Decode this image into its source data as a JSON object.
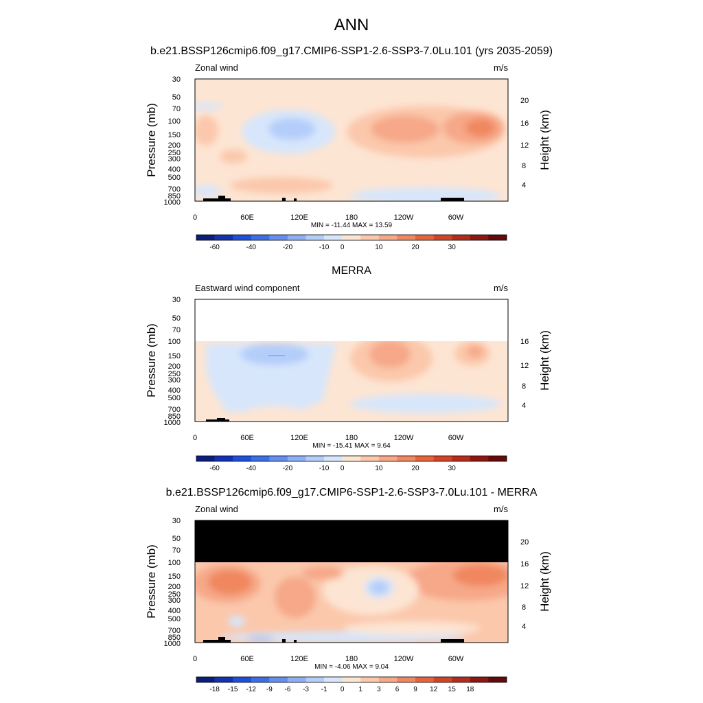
{
  "main_title": "ANN",
  "chart_data": [
    {
      "type": "heatmap",
      "title": "b.e21.BSSP126cmip6.f09_g17.CMIP6-SSP1-2.6-SSP3-7.0Lu.101 (yrs 2035-2059)",
      "field_label": "Zonal wind",
      "units": "m/s",
      "ylabel": "Pressure (mb)",
      "ylabel_right": "Height (km)",
      "x_ticks": [
        "0",
        "60E",
        "120E",
        "180",
        "120W",
        "60W"
      ],
      "y_ticks": [
        "30",
        "50",
        "70",
        "100",
        "150",
        "200",
        "250",
        "300",
        "400",
        "500",
        "700",
        "850",
        "1000"
      ],
      "height_ticks": [
        "20",
        "16",
        "12",
        "8",
        "4"
      ],
      "minmax": "MIN = -11.44  MAX =  13.59",
      "min": -11.44,
      "max": 13.59,
      "levels": [
        "-60",
        "-40",
        "-20",
        "-10",
        "0",
        "10",
        "20",
        "30"
      ],
      "colors": [
        "#0a1e7a",
        "#1232b0",
        "#1e50dc",
        "#3c6ee6",
        "#648ff0",
        "#8caff5",
        "#b4cdfa",
        "#d7e6fb",
        "#fde5d3",
        "#fbc8ac",
        "#f6a888",
        "#f0875f",
        "#e6643c",
        "#d24428",
        "#b42d1c",
        "#8c1810",
        "#640a0a"
      ],
      "plot_top": 30
    },
    {
      "type": "heatmap",
      "title": "MERRA",
      "field_label": "Eastward wind component",
      "units": "m/s",
      "ylabel": "Pressure (mb)",
      "ylabel_right": "Height (km)",
      "x_ticks": [
        "0",
        "60E",
        "120E",
        "180",
        "120W",
        "60W"
      ],
      "y_ticks": [
        "30",
        "50",
        "70",
        "100",
        "150",
        "200",
        "250",
        "300",
        "400",
        "500",
        "700",
        "850",
        "1000"
      ],
      "height_ticks": [
        "16",
        "12",
        "8",
        "4"
      ],
      "minmax": "MIN = -15.41  MAX =   9.64",
      "min": -15.41,
      "max": 9.64,
      "levels": [
        "-60",
        "-40",
        "-20",
        "-10",
        "0",
        "10",
        "20",
        "30"
      ],
      "colors": [
        "#0a1e7a",
        "#1232b0",
        "#1e50dc",
        "#3c6ee6",
        "#648ff0",
        "#8caff5",
        "#b4cdfa",
        "#d7e6fb",
        "#fde5d3",
        "#fbc8ac",
        "#f6a888",
        "#f0875f",
        "#e6643c",
        "#d24428",
        "#b42d1c",
        "#8c1810",
        "#640a0a"
      ],
      "plot_top": 100
    },
    {
      "type": "heatmap",
      "title": "b.e21.BSSP126cmip6.f09_g17.CMIP6-SSP1-2.6-SSP3-7.0Lu.101 - MERRA",
      "field_label": "Zonal wind",
      "units": "m/s",
      "ylabel": "Pressure (mb)",
      "ylabel_right": "Height (km)",
      "x_ticks": [
        "0",
        "60E",
        "120E",
        "180",
        "120W",
        "60W"
      ],
      "y_ticks": [
        "30",
        "50",
        "70",
        "100",
        "150",
        "200",
        "250",
        "300",
        "400",
        "500",
        "700",
        "850",
        "1000"
      ],
      "height_ticks": [
        "20",
        "16",
        "12",
        "8",
        "4"
      ],
      "minmax": "MIN =  -4.06  MAX =   9.04",
      "min": -4.06,
      "max": 9.04,
      "levels": [
        "-18",
        "-15",
        "-12",
        "-9",
        "-6",
        "-3",
        "-1",
        "0",
        "1",
        "3",
        "6",
        "9",
        "12",
        "15",
        "18"
      ],
      "colors": [
        "#0a1e7a",
        "#1232b0",
        "#1e50dc",
        "#3c6ee6",
        "#648ff0",
        "#8caff5",
        "#b4cdfa",
        "#d7e6fb",
        "#fde5d3",
        "#fbc8ac",
        "#f6a888",
        "#f0875f",
        "#e6643c",
        "#d24428",
        "#b42d1c",
        "#8c1810",
        "#640a0a"
      ],
      "plot_top": 100,
      "missing_color": "#000000"
    }
  ]
}
